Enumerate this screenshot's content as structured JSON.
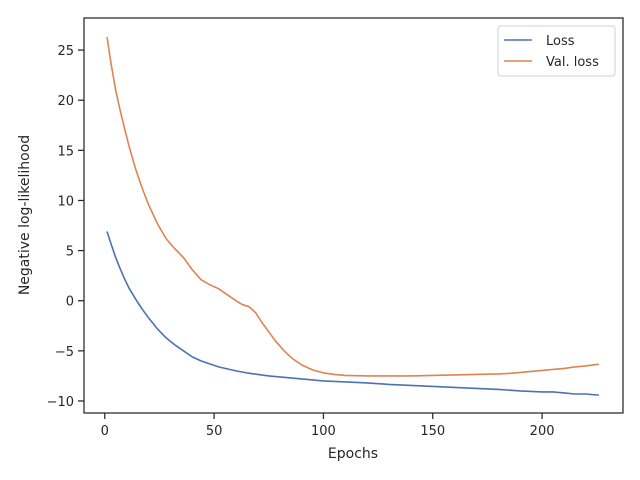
{
  "chart_data": {
    "type": "line",
    "xlabel": "Epochs",
    "ylabel": "Negative log-likelihood",
    "xlim": [
      -9.5,
      237
    ],
    "ylim": [
      -11.2,
      28.2
    ],
    "xticks": [
      0,
      50,
      100,
      150,
      200
    ],
    "yticks": [
      -10,
      -5,
      0,
      5,
      10,
      15,
      20,
      25
    ],
    "legend_position": "top-right",
    "grid": false,
    "series": [
      {
        "name": "Loss",
        "color": "#4c72b0",
        "x": [
          1,
          3,
          5,
          7,
          9,
          11,
          14,
          17,
          20,
          24,
          28,
          32,
          36,
          40,
          44,
          48,
          52,
          56,
          60,
          65,
          70,
          75,
          80,
          90,
          100,
          110,
          120,
          130,
          140,
          150,
          160,
          170,
          180,
          190,
          200,
          205,
          210,
          215,
          220,
          225,
          226
        ],
        "y": [
          6.9,
          5.6,
          4.3,
          3.2,
          2.2,
          1.3,
          0.2,
          -0.8,
          -1.7,
          -2.8,
          -3.7,
          -4.4,
          -5.0,
          -5.6,
          -6.0,
          -6.3,
          -6.6,
          -6.8,
          -7.0,
          -7.2,
          -7.35,
          -7.5,
          -7.6,
          -7.8,
          -8.0,
          -8.1,
          -8.2,
          -8.35,
          -8.45,
          -8.55,
          -8.65,
          -8.75,
          -8.85,
          -9.0,
          -9.1,
          -9.1,
          -9.2,
          -9.3,
          -9.3,
          -9.4,
          -9.4
        ]
      },
      {
        "name": "Val. loss",
        "color": "#dd8452",
        "x": [
          1,
          3,
          5,
          7,
          9,
          11,
          14,
          17,
          20,
          24,
          28,
          32,
          36,
          40,
          44,
          48,
          52,
          56,
          60,
          63,
          66,
          69,
          72,
          75,
          78,
          82,
          86,
          90,
          95,
          100,
          105,
          110,
          120,
          130,
          140,
          150,
          160,
          170,
          180,
          185,
          190,
          195,
          200,
          205,
          210,
          215,
          220,
          225,
          226
        ],
        "y": [
          26.3,
          23.5,
          21.0,
          19.0,
          17.2,
          15.5,
          13.2,
          11.3,
          9.6,
          7.7,
          6.2,
          5.2,
          4.3,
          3.1,
          2.1,
          1.6,
          1.2,
          0.6,
          0.0,
          -0.4,
          -0.6,
          -1.2,
          -2.2,
          -3.1,
          -4.0,
          -5.0,
          -5.8,
          -6.4,
          -6.9,
          -7.2,
          -7.35,
          -7.45,
          -7.5,
          -7.5,
          -7.5,
          -7.45,
          -7.4,
          -7.35,
          -7.3,
          -7.25,
          -7.15,
          -7.05,
          -6.95,
          -6.85,
          -6.75,
          -6.6,
          -6.5,
          -6.35,
          -6.35
        ]
      }
    ]
  }
}
